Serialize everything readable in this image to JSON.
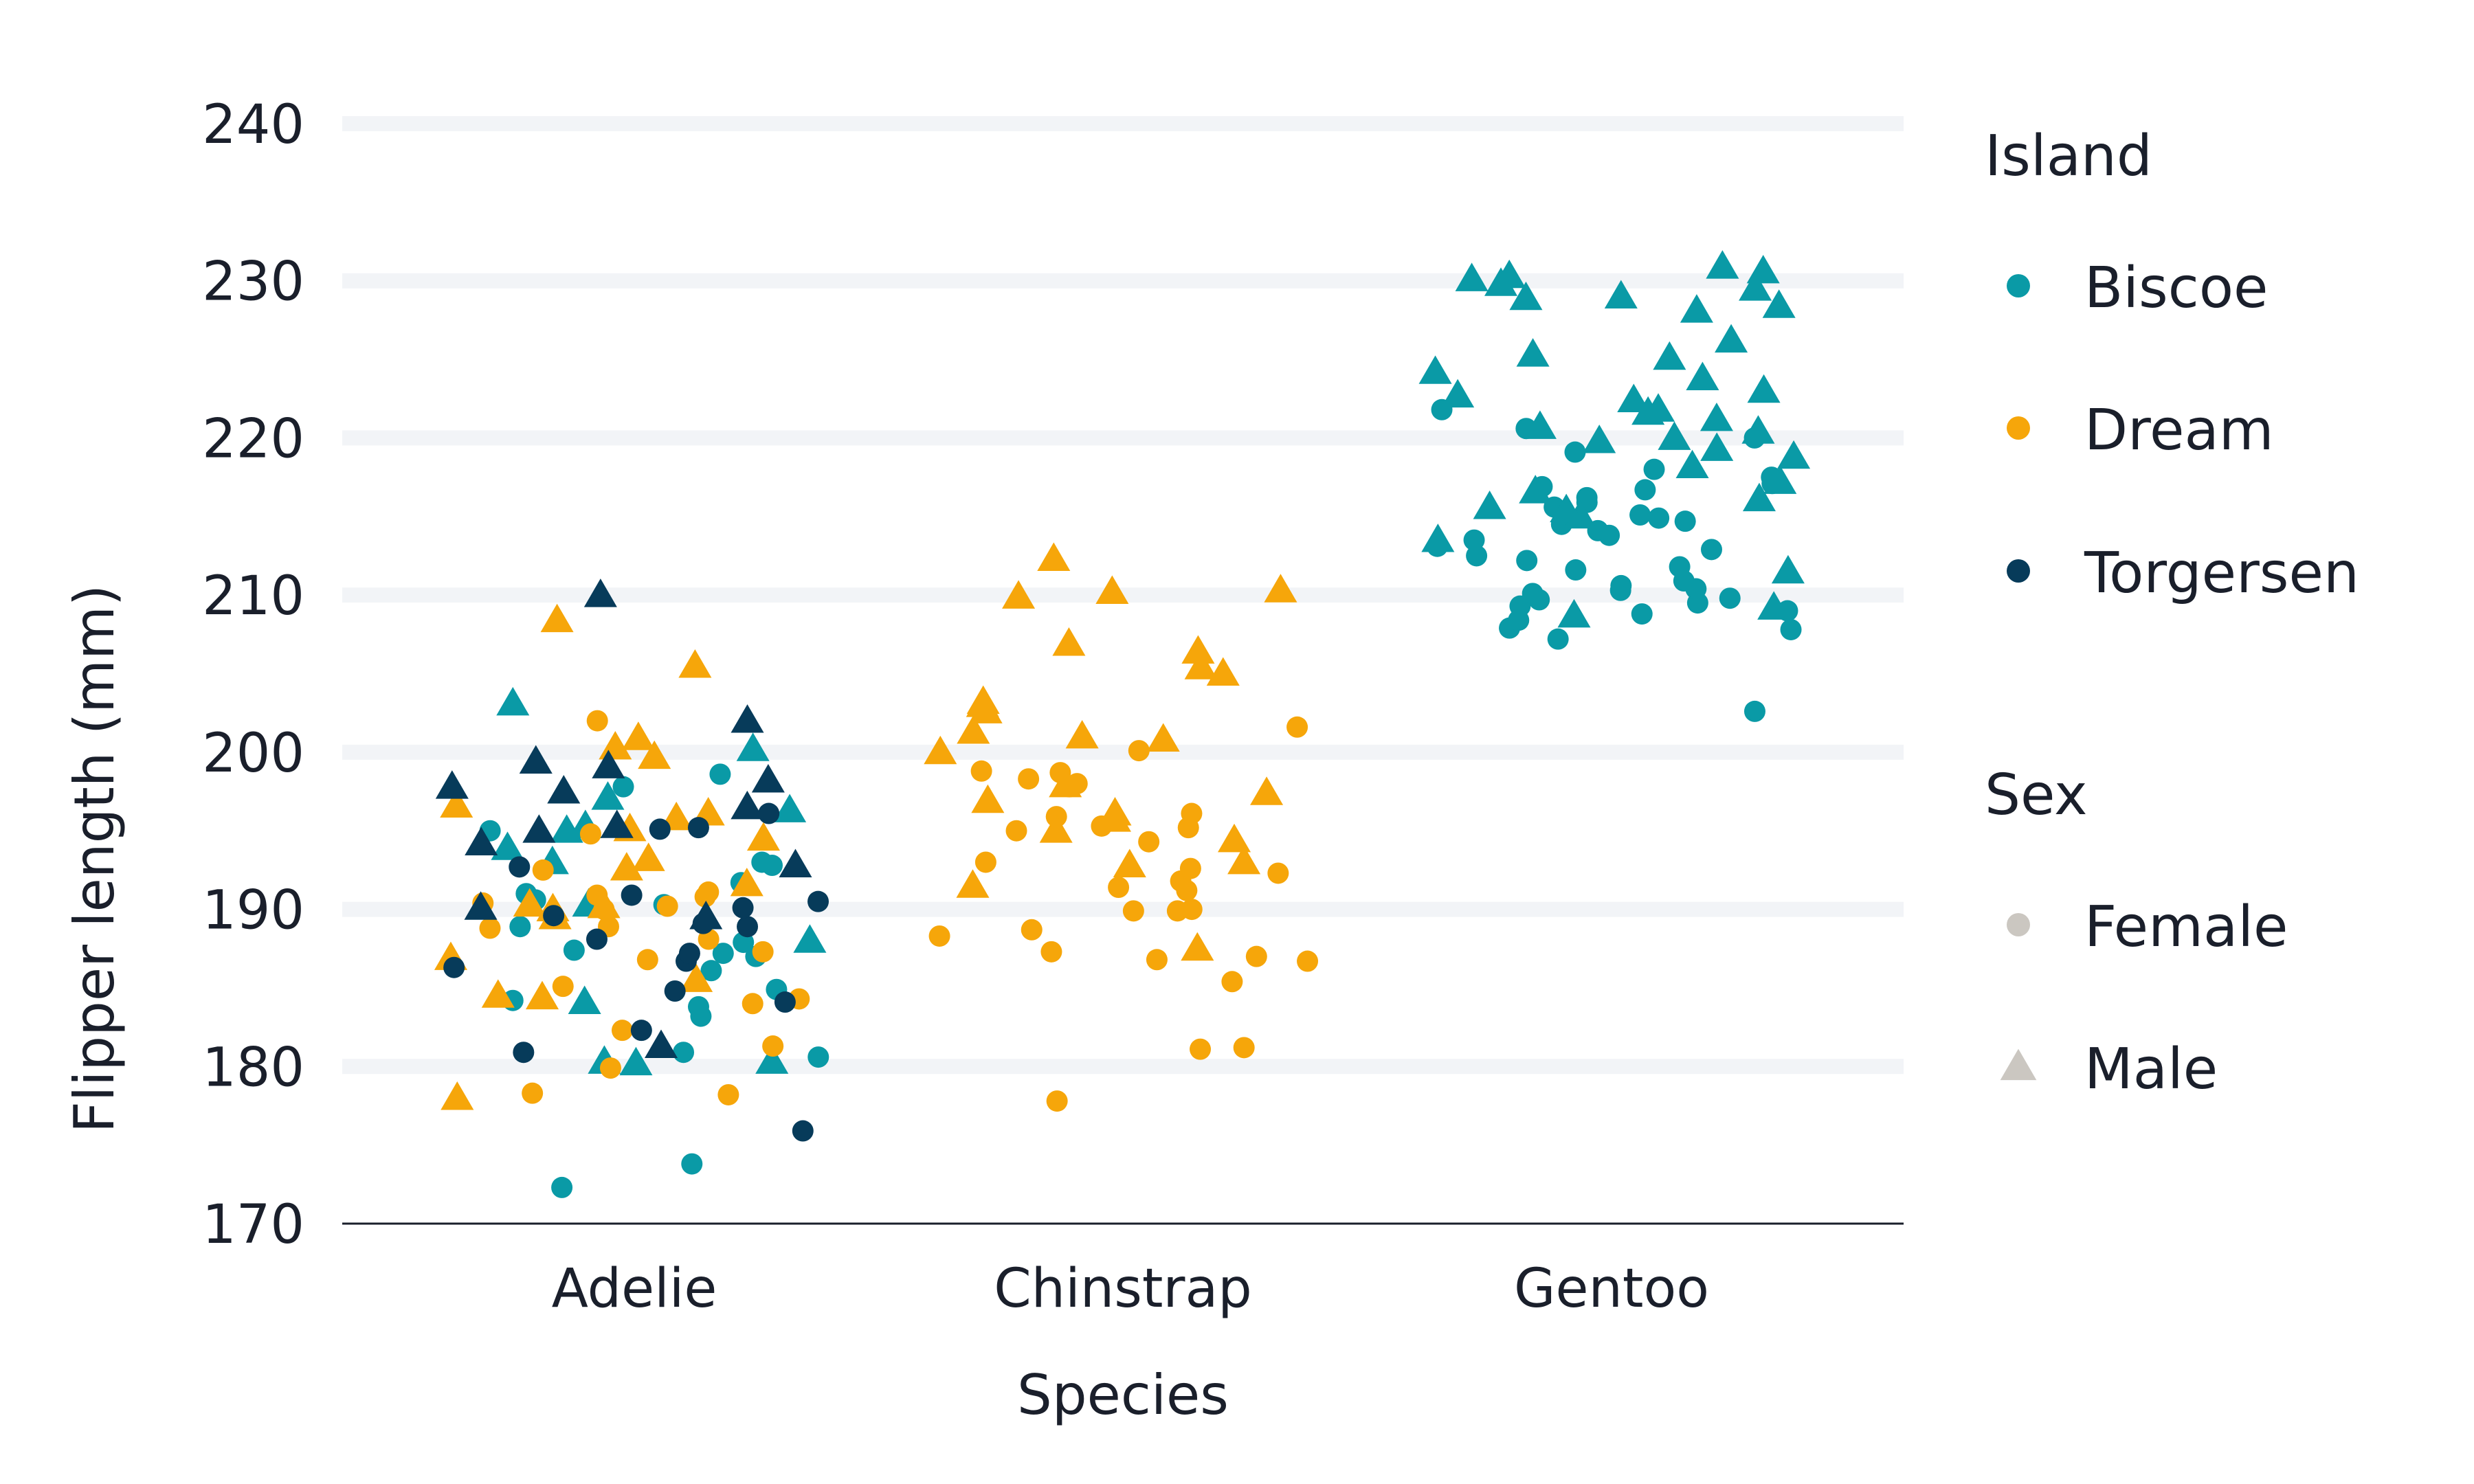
{
  "chart_data": {
    "type": "scatter",
    "title": "",
    "xlabel": "Species",
    "ylabel": "Flipper length (mm)",
    "categories": [
      "Adelie",
      "Chinstrap",
      "Gentoo"
    ],
    "ylim": [
      170,
      240
    ],
    "yticks": [
      "170",
      "180",
      "190",
      "200",
      "210",
      "220",
      "230",
      "240"
    ],
    "grid": "horizontal",
    "jitter": true,
    "legend_placement": "right",
    "legends": [
      {
        "title": "Island",
        "encoding": "color",
        "entries": [
          {
            "label": "Biscoe",
            "color": "#0a9aa6"
          },
          {
            "label": "Dream",
            "color": "#f6a60a"
          },
          {
            "label": "Torgersen",
            "color": "#073b5a"
          }
        ]
      },
      {
        "title": "Sex",
        "encoding": "shape",
        "entries": [
          {
            "label": "Female",
            "shape": "circle"
          },
          {
            "label": "Male",
            "shape": "triangle"
          }
        ]
      }
    ],
    "series": [
      {
        "category": "Adelie",
        "island": "Biscoe",
        "sex": "Female",
        "values": [
          173.8,
          172.3,
          180.9,
          180.6,
          183.2,
          183.8,
          184.2,
          184.9,
          186.1,
          187.0,
          187.2,
          187.4,
          187.9,
          188.9,
          190.3,
          190.6,
          191.0,
          191.7,
          192.8,
          193.0,
          195.0,
          197.8,
          198.6
        ]
      },
      {
        "category": "Adelie",
        "island": "Biscoe",
        "sex": "Male",
        "values": [
          184.1,
          193.0,
          195.3,
          196.3,
          180.3,
          180.3,
          197.1,
          200.2,
          203.1,
          193.9,
          195.0,
          190.3,
          180.2,
          188.0
        ]
      },
      {
        "category": "Adelie",
        "island": "Dream",
        "sex": "Female",
        "values": [
          182.3,
          178.2,
          178.3,
          179.9,
          181.3,
          184.0,
          185.1,
          186.8,
          187.3,
          188.1,
          188.8,
          190.2,
          190.4,
          190.8,
          190.9,
          191.1,
          192.5,
          194.8,
          202.0,
          190.0,
          184.3,
          188.9
        ]
      },
      {
        "category": "Adelie",
        "island": "Dream",
        "sex": "Male",
        "values": [
          178.0,
          184.4,
          184.5,
          185.5,
          186.9,
          189.5,
          190.0,
          190.2,
          190.3,
          191.6,
          192.6,
          193.2,
          194.5,
          195.8,
          196.1,
          196.6,
          199.7,
          200.3,
          200.9,
          205.5,
          208.4,
          195.1
        ]
      },
      {
        "category": "Adelie",
        "island": "Torgersen",
        "sex": "Female",
        "values": [
          175.9,
          180.9,
          182.3,
          184.1,
          184.8,
          186.3,
          186.7,
          187.2,
          188.1,
          188.9,
          189.1,
          189.6,
          190.1,
          190.5,
          190.9,
          192.7,
          195.1,
          195.2,
          196.1
        ]
      },
      {
        "category": "Adelie",
        "island": "Torgersen",
        "sex": "Male",
        "values": [
          181.3,
          189.5,
          190.1,
          192.8,
          194.2,
          195.0,
          195.3,
          196.5,
          197.5,
          198.2,
          199.4,
          202.0,
          210.0,
          199.1,
          197.8
        ]
      },
      {
        "category": "Chinstrap",
        "island": "Dream",
        "sex": "Female",
        "values": [
          177.8,
          181.1,
          181.2,
          185.4,
          186.7,
          186.8,
          187.0,
          187.3,
          188.3,
          188.7,
          189.9,
          189.9,
          190.0,
          191.2,
          191.4,
          191.8,
          192.3,
          192.6,
          193.0,
          194.3,
          195.0,
          195.2,
          195.3,
          195.9,
          196.1,
          197.8,
          198.0,
          198.3,
          198.7,
          198.8,
          200.1,
          201.6
        ]
      },
      {
        "category": "Chinstrap",
        "island": "Dream",
        "sex": "Male",
        "values": [
          187.5,
          192.8,
          193.0,
          194.4,
          195.0,
          195.7,
          196.1,
          196.9,
          197.4,
          197.9,
          200.0,
          200.8,
          201.0,
          201.3,
          202.6,
          203.0,
          203.2,
          205.0,
          205.4,
          206.4,
          206.9,
          209.9,
          210.2,
          210.3,
          212.3,
          191.5
        ]
      },
      {
        "category": "Gentoo",
        "island": "Biscoe",
        "sex": "Female",
        "values": [
          202.6,
          207.2,
          207.8,
          207.9,
          208.4,
          208.8,
          209.0,
          209.3,
          209.5,
          209.7,
          209.8,
          210.1,
          210.3,
          210.4,
          210.6,
          210.9,
          211.8,
          212.2,
          212.5,
          212.9,
          213.1,
          213.5,
          213.8,
          214.1,
          214.5,
          214.7,
          214.9,
          215.1,
          215.6,
          215.9,
          216.2,
          216.7,
          216.9,
          217.1,
          217.5,
          218.0,
          219.1,
          220.0,
          220.6,
          221.8,
          211.6
        ]
      },
      {
        "category": "Gentoo",
        "island": "Biscoe",
        "sex": "Male",
        "values": [
          208.7,
          209.2,
          211.5,
          213.5,
          215.0,
          215.4,
          215.6,
          216.1,
          216.6,
          217.2,
          218.2,
          218.8,
          219.3,
          219.8,
          220.0,
          220.4,
          220.7,
          221.2,
          221.6,
          221.8,
          222.4,
          222.7,
          223.0,
          223.8,
          224.2,
          225.1,
          225.3,
          226.2,
          228.1,
          228.4,
          229.0,
          229.5,
          229.8,
          230.1,
          230.3,
          230.6,
          230.9,
          228.9
        ]
      }
    ]
  }
}
